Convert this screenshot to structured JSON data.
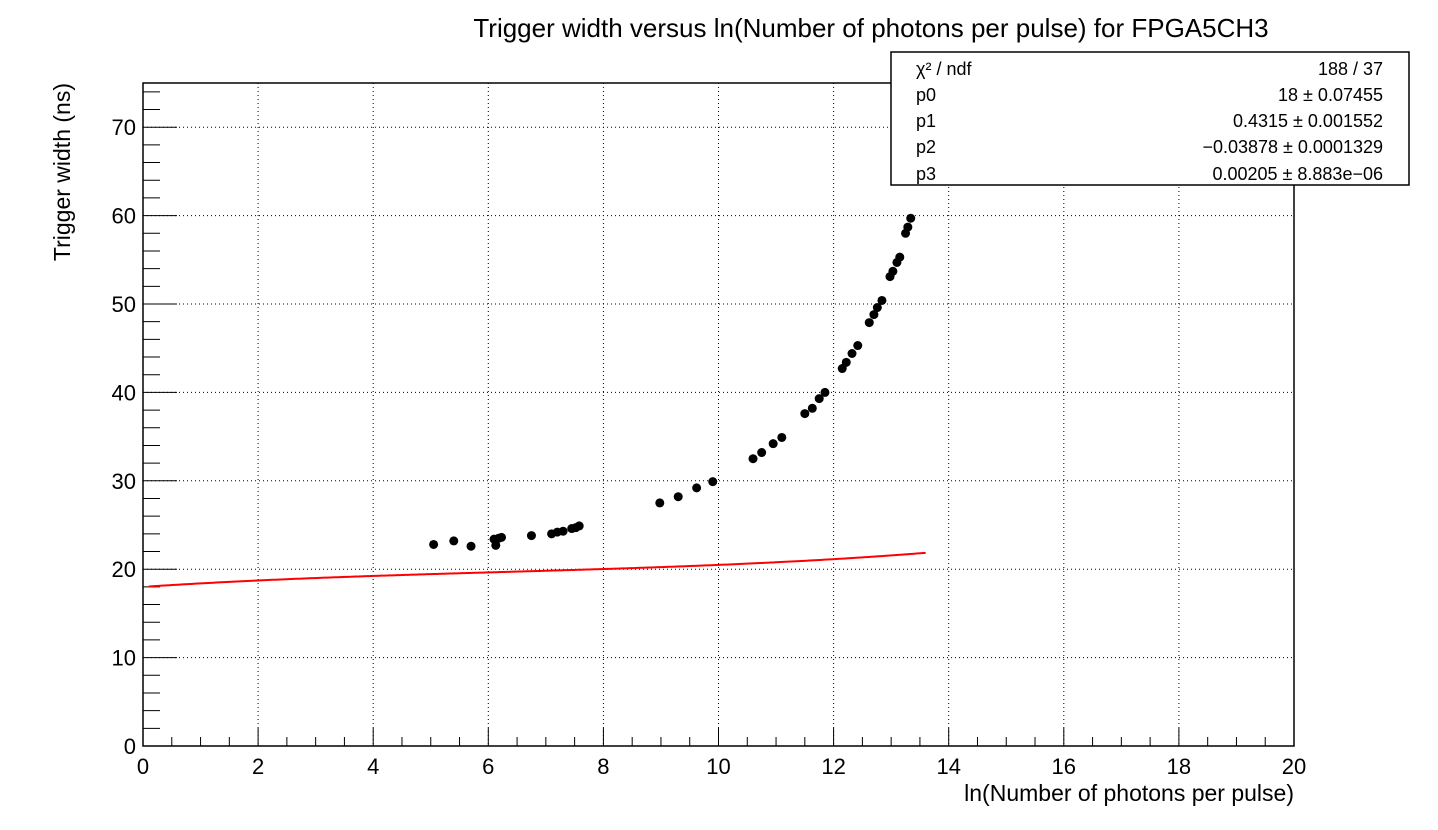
{
  "chart_data": {
    "type": "scatter",
    "title": "Trigger width versus ln(Number of photons per pulse) for FPGA5CH3",
    "xlabel": "ln(Number of photons per pulse)",
    "ylabel": "Trigger width (ns)",
    "xlim": [
      0,
      20
    ],
    "ylim": [
      0,
      75
    ],
    "x_ticks": [
      "0",
      "2",
      "4",
      "6",
      "8",
      "10",
      "12",
      "14",
      "16",
      "18",
      "20"
    ],
    "y_ticks": [
      "0",
      "10",
      "20",
      "30",
      "40",
      "50",
      "60",
      "70"
    ],
    "grid": true,
    "series": [
      {
        "type": "scatter",
        "color": "#000000",
        "points": [
          [
            5.05,
            22.8
          ],
          [
            5.4,
            23.2
          ],
          [
            5.7,
            22.6
          ],
          [
            6.1,
            23.4
          ],
          [
            6.13,
            22.7
          ],
          [
            6.18,
            23.5
          ],
          [
            6.23,
            23.6
          ],
          [
            6.75,
            23.8
          ],
          [
            7.1,
            24.0
          ],
          [
            7.2,
            24.2
          ],
          [
            7.3,
            24.3
          ],
          [
            7.45,
            24.6
          ],
          [
            7.52,
            24.7
          ],
          [
            7.58,
            24.9
          ],
          [
            8.98,
            27.5
          ],
          [
            9.3,
            28.2
          ],
          [
            9.62,
            29.2
          ],
          [
            9.9,
            29.9
          ],
          [
            10.6,
            32.5
          ],
          [
            10.75,
            33.2
          ],
          [
            10.95,
            34.2
          ],
          [
            11.1,
            34.9
          ],
          [
            11.5,
            37.6
          ],
          [
            11.63,
            38.2
          ],
          [
            11.75,
            39.3
          ],
          [
            11.85,
            40.0
          ],
          [
            12.15,
            42.7
          ],
          [
            12.22,
            43.4
          ],
          [
            12.32,
            44.4
          ],
          [
            12.42,
            45.3
          ],
          [
            12.62,
            47.9
          ],
          [
            12.7,
            48.8
          ],
          [
            12.76,
            49.6
          ],
          [
            12.84,
            50.4
          ],
          [
            12.98,
            53.1
          ],
          [
            13.03,
            53.7
          ],
          [
            13.1,
            54.7
          ],
          [
            13.15,
            55.3
          ],
          [
            13.25,
            58.0
          ],
          [
            13.29,
            58.7
          ],
          [
            13.34,
            59.7
          ]
        ]
      },
      {
        "type": "line",
        "function": "pol3",
        "color": "#ff0000",
        "params": {
          "p0": 18,
          "p1": 0.4315,
          "p2": -0.03878,
          "p3": 0.00205
        },
        "x_range": [
          0.1,
          13.6
        ]
      }
    ],
    "stats_box": {
      "position": "top-right",
      "rows": [
        {
          "label": "χ² / ndf",
          "value": "188 / 37"
        },
        {
          "label": "p0",
          "value": "18 ± 0.07455"
        },
        {
          "label": "p1",
          "value": "0.4315 ± 0.001552"
        },
        {
          "label": "p2",
          "value": "−0.03878 ± 0.0001329"
        },
        {
          "label": "p3",
          "value": "0.00205 ± 8.883e−06"
        }
      ]
    }
  }
}
